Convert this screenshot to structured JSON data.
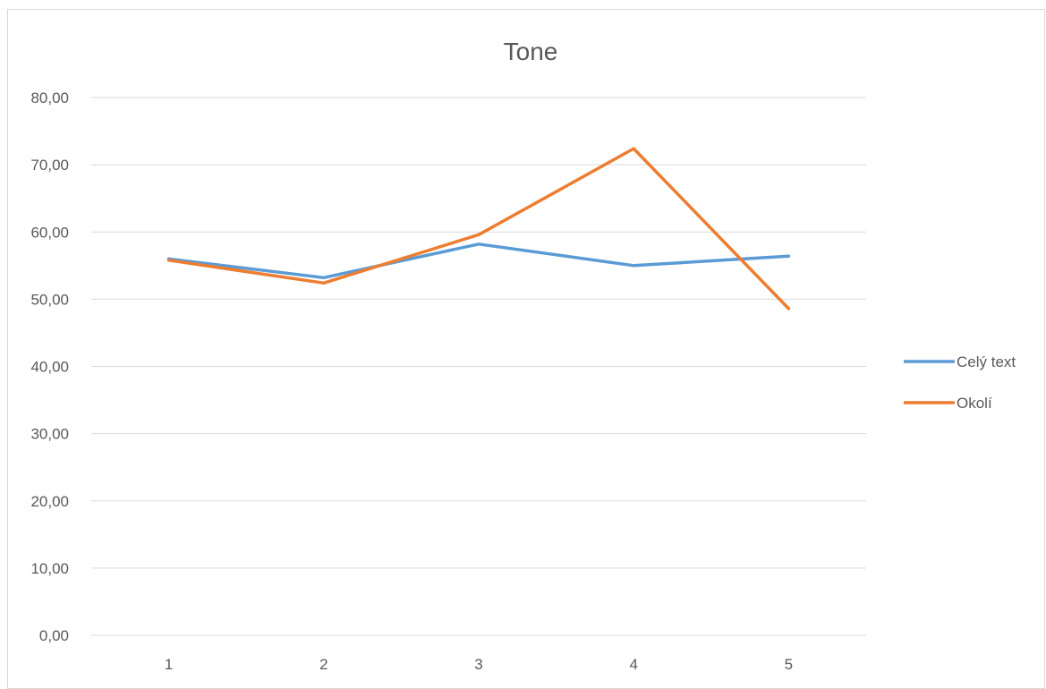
{
  "chart_data": {
    "type": "line",
    "title": "Tone",
    "xlabel": "",
    "ylabel": "",
    "categories": [
      "1",
      "2",
      "3",
      "4",
      "5"
    ],
    "y_tick_labels": [
      "0,00",
      "10,00",
      "20,00",
      "30,00",
      "40,00",
      "50,00",
      "60,00",
      "70,00",
      "80,00"
    ],
    "ylim": [
      0,
      80
    ],
    "y_step": 10,
    "grid": true,
    "legend_position": "right",
    "series": [
      {
        "name": "Celý text",
        "color": "#5b9bd5",
        "values": [
          56.0,
          53.2,
          58.2,
          55.0,
          56.4
        ]
      },
      {
        "name": "Okolí",
        "color": "#ed7d31",
        "values": [
          55.8,
          52.4,
          59.6,
          72.4,
          48.6
        ]
      }
    ]
  }
}
